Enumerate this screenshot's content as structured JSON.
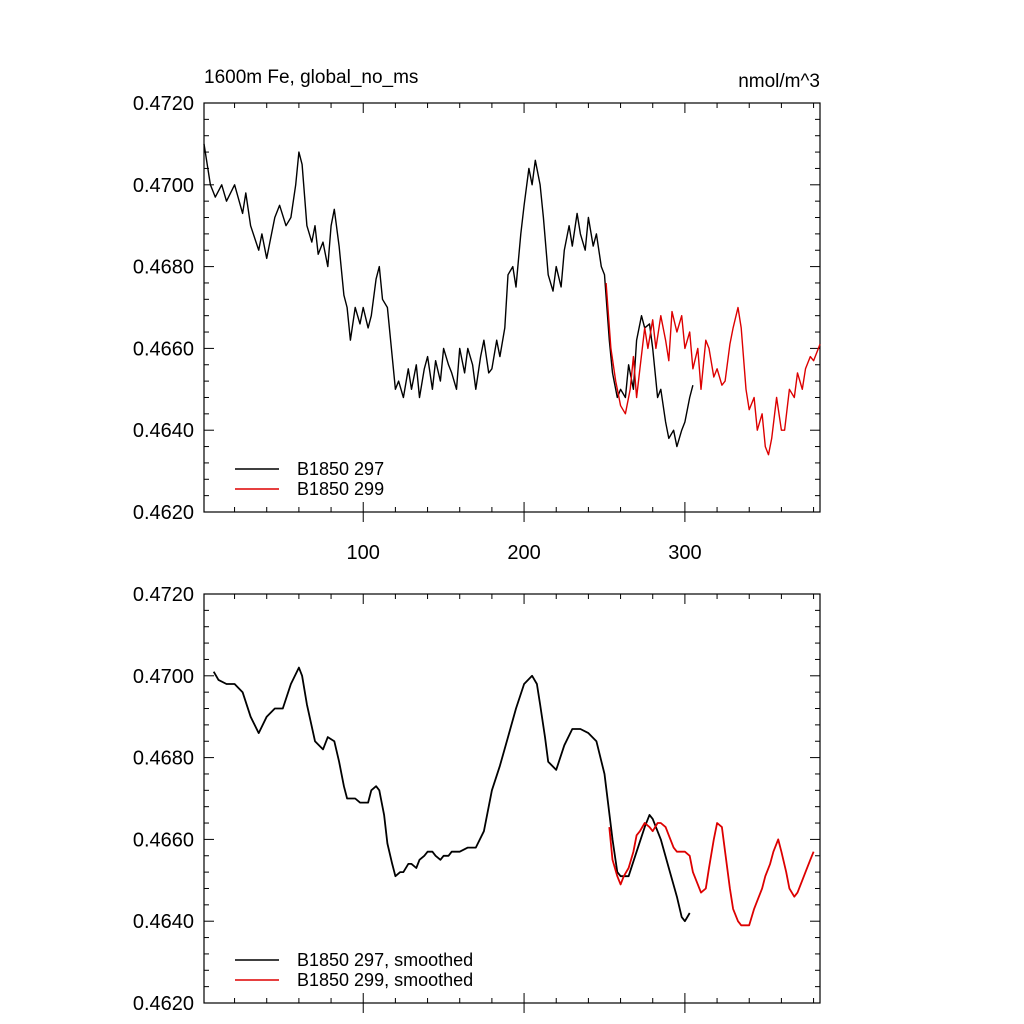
{
  "chart_data": [
    {
      "type": "line",
      "title": "1600m Fe, global_no_ms",
      "units": "nmol/m^3",
      "xlabel": "",
      "ylabel": "",
      "xlim": [
        1,
        384
      ],
      "ylim": [
        0.462,
        0.472
      ],
      "xticks": [
        100,
        200,
        300
      ],
      "xtick_labels": [
        "100",
        "200",
        "300"
      ],
      "yticks": [
        0.462,
        0.464,
        0.466,
        0.468,
        0.47,
        0.472
      ],
      "ytick_labels": [
        "0.4620",
        "0.4640",
        "0.4660",
        "0.4680",
        "0.4700",
        "0.4720"
      ],
      "grid": false,
      "legend_position": "bottom-left",
      "series": [
        {
          "name": "B1850 297",
          "color": "#000000",
          "x": [
            1,
            5,
            8,
            12,
            15,
            20,
            25,
            27,
            30,
            35,
            37,
            40,
            42,
            45,
            48,
            52,
            55,
            58,
            60,
            62,
            65,
            68,
            70,
            72,
            75,
            78,
            80,
            82,
            85,
            88,
            90,
            92,
            95,
            98,
            100,
            103,
            105,
            108,
            110,
            112,
            115,
            118,
            120,
            122,
            125,
            128,
            130,
            133,
            135,
            138,
            140,
            143,
            145,
            148,
            150,
            153,
            155,
            158,
            160,
            163,
            165,
            168,
            170,
            173,
            175,
            178,
            180,
            183,
            185,
            188,
            190,
            193,
            195,
            198,
            200,
            203,
            205,
            207,
            210,
            212,
            215,
            218,
            220,
            223,
            225,
            228,
            230,
            233,
            235,
            238,
            240,
            243,
            245,
            248,
            250,
            253,
            255,
            258,
            260,
            263,
            265,
            268,
            270,
            273,
            275,
            278,
            280,
            283,
            285,
            288,
            290,
            293,
            295,
            298,
            300,
            303,
            305
          ],
          "y": [
            0.471,
            0.47,
            0.4697,
            0.47,
            0.4696,
            0.47,
            0.4693,
            0.4698,
            0.469,
            0.4684,
            0.4688,
            0.4682,
            0.4686,
            0.4692,
            0.4695,
            0.469,
            0.4692,
            0.47,
            0.4708,
            0.4705,
            0.469,
            0.4686,
            0.469,
            0.4683,
            0.4686,
            0.468,
            0.469,
            0.4694,
            0.4685,
            0.4673,
            0.467,
            0.4662,
            0.467,
            0.4666,
            0.467,
            0.4665,
            0.4668,
            0.4677,
            0.468,
            0.4672,
            0.467,
            0.4658,
            0.465,
            0.4652,
            0.4648,
            0.4655,
            0.465,
            0.4656,
            0.4648,
            0.4655,
            0.4658,
            0.465,
            0.4657,
            0.4652,
            0.466,
            0.4656,
            0.4654,
            0.465,
            0.466,
            0.4654,
            0.466,
            0.4656,
            0.465,
            0.4658,
            0.4662,
            0.4654,
            0.4655,
            0.4662,
            0.4658,
            0.4665,
            0.4678,
            0.468,
            0.4675,
            0.4688,
            0.4695,
            0.4704,
            0.47,
            0.4706,
            0.47,
            0.4692,
            0.4678,
            0.4674,
            0.468,
            0.4675,
            0.4684,
            0.469,
            0.4685,
            0.4693,
            0.4688,
            0.4684,
            0.4692,
            0.4685,
            0.4688,
            0.468,
            0.4678,
            0.4662,
            0.4654,
            0.4648,
            0.465,
            0.4648,
            0.4656,
            0.465,
            0.4662,
            0.4668,
            0.4665,
            0.4666,
            0.466,
            0.4648,
            0.465,
            0.4642,
            0.4638,
            0.464,
            0.4636,
            0.464,
            0.4642,
            0.4648,
            0.4651
          ]
        },
        {
          "name": "B1850 299",
          "color": "#dd0000",
          "x": [
            251,
            254,
            257,
            260,
            263,
            266,
            268,
            270,
            272,
            275,
            277,
            280,
            282,
            285,
            288,
            290,
            292,
            295,
            298,
            300,
            303,
            305,
            308,
            310,
            313,
            315,
            318,
            320,
            323,
            325,
            328,
            330,
            333,
            335,
            338,
            340,
            343,
            345,
            348,
            350,
            352,
            354,
            357,
            360,
            362,
            365,
            368,
            370,
            373,
            375,
            378,
            380,
            383,
            384
          ],
          "y": [
            0.4676,
            0.466,
            0.4652,
            0.4646,
            0.4644,
            0.465,
            0.4658,
            0.4648,
            0.4655,
            0.4665,
            0.466,
            0.4667,
            0.466,
            0.4668,
            0.4662,
            0.4657,
            0.4669,
            0.4664,
            0.4668,
            0.466,
            0.4664,
            0.4655,
            0.466,
            0.465,
            0.4662,
            0.466,
            0.4653,
            0.4655,
            0.4651,
            0.4652,
            0.4661,
            0.4665,
            0.467,
            0.4665,
            0.465,
            0.4645,
            0.4648,
            0.464,
            0.4644,
            0.4636,
            0.4634,
            0.4638,
            0.4648,
            0.464,
            0.464,
            0.465,
            0.4648,
            0.4654,
            0.465,
            0.4655,
            0.4658,
            0.4657,
            0.466,
            0.4661
          ]
        }
      ]
    },
    {
      "type": "line",
      "title": "",
      "xlabel": "",
      "ylabel": "",
      "xlim": [
        1,
        384
      ],
      "ylim": [
        0.462,
        0.472
      ],
      "xticks": [
        100,
        200,
        300
      ],
      "xtick_labels": [],
      "yticks": [
        0.462,
        0.464,
        0.466,
        0.468,
        0.47,
        0.472
      ],
      "ytick_labels": [
        "0.4620",
        "0.4640",
        "0.4660",
        "0.4680",
        "0.4700",
        "0.4720"
      ],
      "grid": false,
      "legend_position": "bottom-left",
      "series": [
        {
          "name": "B1850 297, smoothed",
          "color": "#000000",
          "x": [
            7,
            10,
            15,
            20,
            25,
            30,
            35,
            40,
            45,
            50,
            55,
            60,
            62,
            65,
            70,
            75,
            78,
            82,
            85,
            88,
            90,
            93,
            95,
            98,
            100,
            103,
            105,
            108,
            110,
            113,
            115,
            118,
            120,
            123,
            125,
            128,
            130,
            133,
            135,
            138,
            140,
            143,
            145,
            148,
            150,
            153,
            155,
            160,
            165,
            170,
            175,
            180,
            185,
            190,
            195,
            200,
            205,
            208,
            210,
            213,
            215,
            220,
            225,
            230,
            235,
            240,
            245,
            250,
            255,
            258,
            260,
            265,
            270,
            275,
            278,
            280,
            285,
            290,
            295,
            298,
            300,
            303
          ],
          "y": [
            0.4701,
            0.4699,
            0.4698,
            0.4698,
            0.4696,
            0.469,
            0.4686,
            0.469,
            0.4692,
            0.4692,
            0.4698,
            0.4702,
            0.47,
            0.4693,
            0.4684,
            0.4682,
            0.4685,
            0.4684,
            0.4679,
            0.4673,
            0.467,
            0.467,
            0.467,
            0.4669,
            0.4669,
            0.4669,
            0.4672,
            0.4673,
            0.4672,
            0.4666,
            0.4659,
            0.4654,
            0.4651,
            0.4652,
            0.4652,
            0.4654,
            0.4654,
            0.4653,
            0.4655,
            0.4656,
            0.4657,
            0.4657,
            0.4656,
            0.4655,
            0.4656,
            0.4656,
            0.4657,
            0.4657,
            0.4658,
            0.4658,
            0.4662,
            0.4672,
            0.4678,
            0.4685,
            0.4692,
            0.4698,
            0.47,
            0.4698,
            0.4693,
            0.4685,
            0.4679,
            0.4677,
            0.4683,
            0.4687,
            0.4687,
            0.4686,
            0.4684,
            0.4676,
            0.466,
            0.4652,
            0.4651,
            0.4651,
            0.4657,
            0.4663,
            0.4666,
            0.4665,
            0.466,
            0.4653,
            0.4646,
            0.4641,
            0.464,
            0.4642
          ]
        },
        {
          "name": "B1850 299, smoothed",
          "color": "#dd0000",
          "x": [
            253,
            255,
            258,
            260,
            262,
            265,
            268,
            270,
            272,
            275,
            278,
            280,
            283,
            285,
            288,
            290,
            293,
            295,
            298,
            300,
            303,
            305,
            308,
            310,
            313,
            315,
            318,
            320,
            323,
            325,
            328,
            330,
            333,
            335,
            338,
            340,
            343,
            345,
            348,
            350,
            353,
            355,
            358,
            360,
            363,
            365,
            368,
            370,
            373,
            375,
            378,
            380
          ],
          "y": [
            0.4663,
            0.4655,
            0.4651,
            0.4649,
            0.4651,
            0.4653,
            0.4657,
            0.4661,
            0.4662,
            0.4664,
            0.4663,
            0.4662,
            0.4664,
            0.4664,
            0.4663,
            0.4661,
            0.4658,
            0.4657,
            0.4657,
            0.4657,
            0.4656,
            0.4652,
            0.4649,
            0.4647,
            0.4648,
            0.4653,
            0.466,
            0.4664,
            0.4663,
            0.4657,
            0.4648,
            0.4643,
            0.464,
            0.4639,
            0.4639,
            0.4639,
            0.4643,
            0.4645,
            0.4648,
            0.4651,
            0.4654,
            0.4657,
            0.466,
            0.4657,
            0.4652,
            0.4648,
            0.4646,
            0.4647,
            0.465,
            0.4652,
            0.4655,
            0.4657
          ]
        }
      ]
    }
  ]
}
